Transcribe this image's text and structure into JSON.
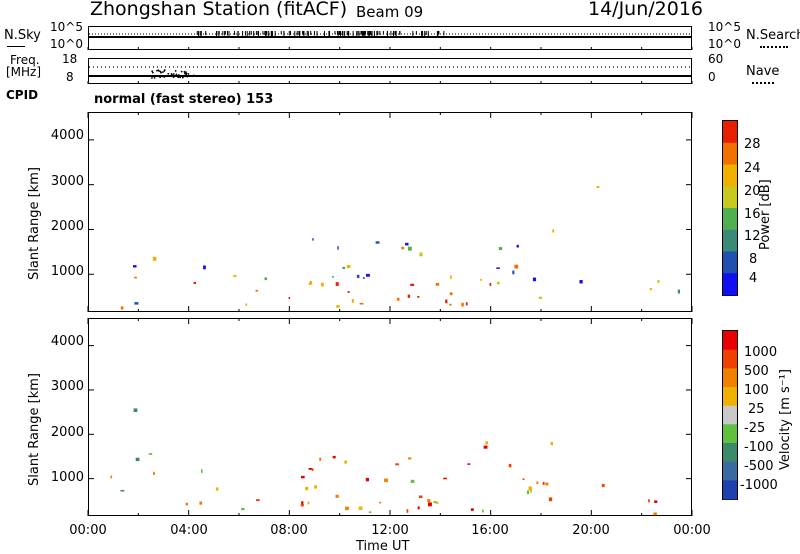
{
  "header": {
    "station": "Zhongshan Station (fitACF)",
    "beam": "Beam 09",
    "date": "14/Jun/2016"
  },
  "noise_panel": {
    "left_label": "N.Sky",
    "left_ticks": [
      "10^5",
      "10^0"
    ],
    "right_label": "N.Search",
    "right_ticks": [
      "10^5",
      "10^0"
    ]
  },
  "freq_panel": {
    "left_label_1": "Freq.",
    "left_label_2": "[MHz]",
    "left_ticks": [
      "18",
      "8"
    ],
    "right_label": "Nave",
    "right_ticks": [
      "60",
      "0"
    ]
  },
  "cpid": {
    "label": "CPID",
    "value": "normal (fast stereo) 153"
  },
  "chart_data": [
    {
      "type": "heatmap",
      "name": "power",
      "ylabel": "Slant Range [km]",
      "ylim": [
        180,
        4600
      ],
      "yticks": [
        "4000",
        "3000",
        "2000",
        "1000"
      ],
      "xlabel": "",
      "colorbar_label": "Power [dB]",
      "colorbar_ticks": [
        "28",
        "24",
        "20",
        "16",
        "12",
        "8",
        "4"
      ],
      "colors": [
        "#1010f0",
        "#2050b0",
        "#3a8a7a",
        "#50b050",
        "#c8c820",
        "#f0b000",
        "#f07000",
        "#e82000"
      ]
    },
    {
      "type": "heatmap",
      "name": "velocity",
      "ylabel": "Slant Range [km]",
      "ylim": [
        180,
        4600
      ],
      "yticks": [
        "4000",
        "3000",
        "2000",
        "1000"
      ],
      "xlabel": "Time UT",
      "xticks": [
        "00:00",
        "04:00",
        "08:00",
        "12:00",
        "16:00",
        "20:00",
        "00:00"
      ],
      "colorbar_label": "Velocity [m s⁻¹]",
      "colorbar_ticks": [
        "1000",
        "500",
        "100",
        "25",
        "-25",
        "-100",
        "-500",
        "-1000"
      ],
      "colors": [
        "#2040b0",
        "#3a6aa0",
        "#3a8a6a",
        "#60c040",
        "#c8c8c8",
        "#f0b000",
        "#f08000",
        "#f04000",
        "#e80000"
      ]
    }
  ]
}
